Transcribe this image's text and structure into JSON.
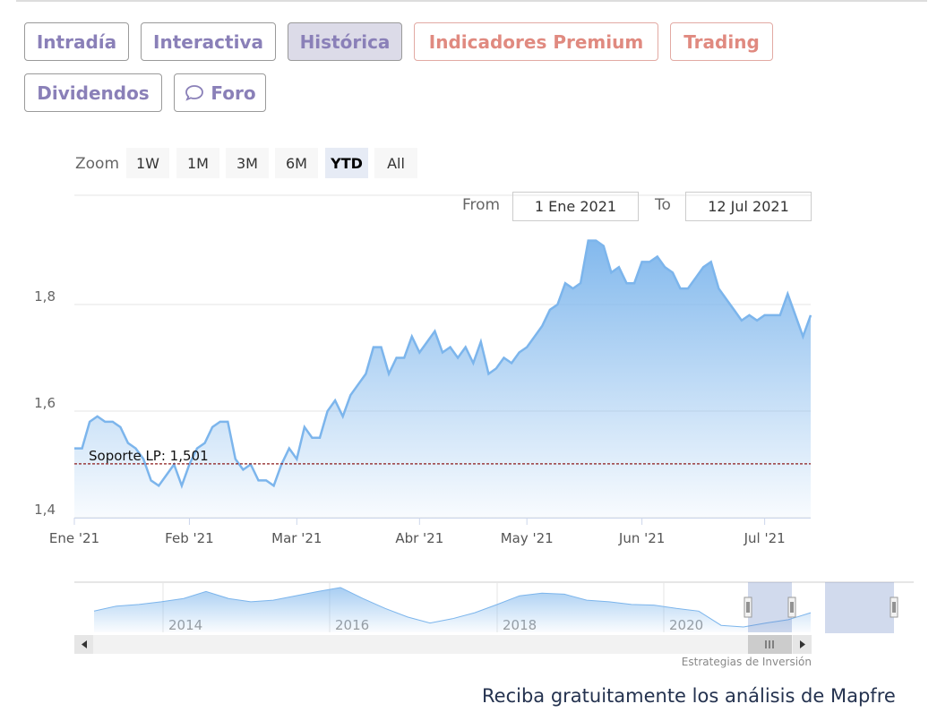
{
  "tabs": [
    "Intradía",
    "Interactiva",
    "Histórica",
    "Indicadores Premium",
    "Trading",
    "Dividendos",
    "Foro"
  ],
  "active_tab": 2,
  "zoom": {
    "label": "Zoom",
    "buttons": [
      "1W",
      "1M",
      "3M",
      "6M",
      "YTD",
      "All"
    ],
    "selected": 4
  },
  "range": {
    "from_label": "From",
    "from": "1 Ene 2021",
    "to_label": "To",
    "to": "12 Jul 2021"
  },
  "chart_data": {
    "type": "area",
    "color": "#7cb5ec",
    "categories": [
      "Ene '21",
      null,
      null,
      null,
      null,
      null,
      null,
      null,
      null,
      null,
      null,
      null,
      null,
      null,
      null,
      "Feb '21",
      null,
      null,
      null,
      null,
      null,
      null,
      null,
      null,
      null,
      null,
      null,
      null,
      null,
      "Mar '21",
      null,
      null,
      null,
      null,
      null,
      null,
      null,
      null,
      null,
      null,
      null,
      null,
      null,
      null,
      null,
      "Abr '21",
      null,
      null,
      null,
      null,
      null,
      null,
      null,
      null,
      null,
      null,
      null,
      null,
      null,
      "May '21",
      null,
      null,
      null,
      null,
      null,
      null,
      null,
      null,
      null,
      null,
      null,
      null,
      null,
      null,
      "Jun '21",
      null,
      null,
      null,
      null,
      null,
      null,
      null,
      null,
      null,
      null,
      null,
      null,
      null,
      null,
      null,
      "Jul '21",
      null,
      null,
      null,
      null,
      null,
      null
    ],
    "values": [
      1.53,
      1.53,
      1.58,
      1.59,
      1.58,
      1.58,
      1.57,
      1.54,
      1.53,
      1.51,
      1.47,
      1.46,
      1.48,
      1.5,
      1.46,
      1.5,
      1.53,
      1.54,
      1.57,
      1.58,
      1.58,
      1.51,
      1.49,
      1.5,
      1.47,
      1.47,
      1.46,
      1.5,
      1.53,
      1.51,
      1.57,
      1.55,
      1.55,
      1.6,
      1.62,
      1.59,
      1.63,
      1.65,
      1.67,
      1.72,
      1.72,
      1.67,
      1.7,
      1.7,
      1.74,
      1.71,
      1.73,
      1.75,
      1.71,
      1.72,
      1.7,
      1.72,
      1.69,
      1.73,
      1.67,
      1.68,
      1.7,
      1.69,
      1.71,
      1.72,
      1.74,
      1.76,
      1.79,
      1.8,
      1.84,
      1.83,
      1.84,
      1.92,
      1.92,
      1.91,
      1.86,
      1.87,
      1.84,
      1.84,
      1.88,
      1.88,
      1.89,
      1.87,
      1.86,
      1.83,
      1.83,
      1.85,
      1.87,
      1.88,
      1.83,
      1.81,
      1.79,
      1.77,
      1.78,
      1.77,
      1.78,
      1.78,
      1.78,
      1.82,
      1.78,
      1.74,
      1.78
    ],
    "ylim": [
      1.4,
      2.0
    ],
    "yticks": [
      {
        "value": 1.4,
        "label": "1,4"
      },
      {
        "value": 1.6,
        "label": "1,6"
      },
      {
        "value": 1.8,
        "label": "1,8"
      }
    ],
    "grid": true,
    "plot_lines": [
      {
        "value": 1.501,
        "label": "Soporte LP: 1,501",
        "color": "#8b1a1a"
      }
    ],
    "navigator": {
      "labels": [
        "2014",
        "2016",
        "2018",
        "2020"
      ],
      "values": [
        1.76,
        1.91,
        1.96,
        2.04,
        2.14,
        2.35,
        2.14,
        2.04,
        2.09,
        2.22,
        2.35,
        2.47,
        2.14,
        1.84,
        1.58,
        1.4,
        1.53,
        1.71,
        1.96,
        2.22,
        2.3,
        2.27,
        2.09,
        2.04,
        1.96,
        1.94,
        1.84,
        1.76,
        1.33,
        1.28,
        1.4,
        1.5,
        1.71
      ]
    },
    "credits": "Estrategias de Inversión"
  },
  "footer": "Reciba gratuitamente los análisis de Mapfre"
}
